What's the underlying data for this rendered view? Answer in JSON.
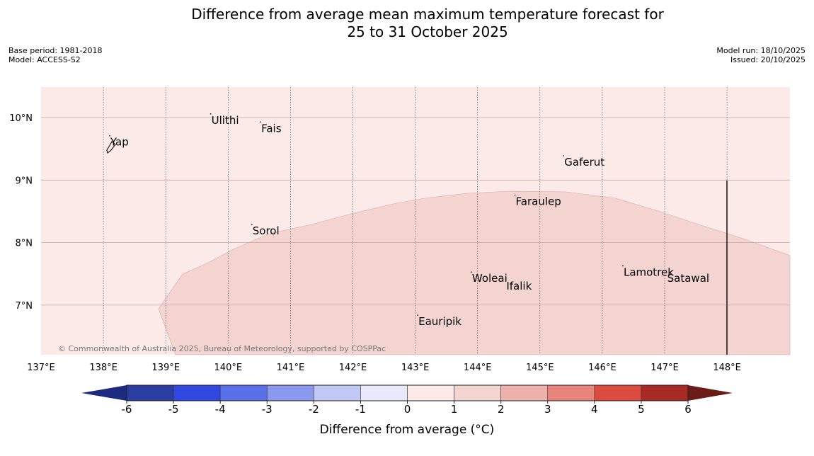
{
  "title": {
    "line1": "Difference from average mean maximum temperature forecast for",
    "line2": "25 to 31 October 2025"
  },
  "meta": {
    "base_period": "Base period: 1981-2018",
    "model": "Model: ACCESS-S2",
    "model_run": "Model run: 18/10/2025",
    "issued": "Issued: 20/10/2025"
  },
  "map": {
    "lon_range": [
      137,
      149
    ],
    "lat_range": [
      6.2,
      10.5
    ],
    "lon_ticks": [
      "137°E",
      "138°E",
      "139°E",
      "140°E",
      "141°E",
      "142°E",
      "143°E",
      "144°E",
      "145°E",
      "146°E",
      "147°E",
      "148°E"
    ],
    "lat_ticks": [
      "10°N",
      "9°N",
      "8°N",
      "7°N"
    ],
    "background_band": "0 to 1",
    "anomaly_band": "1 to 2",
    "colors": {
      "band_0_1": "#fbeae8",
      "band_1_2": "#f4d4d1",
      "grid": "#c9a9a7",
      "land": "#1a1a1a"
    },
    "islands": [
      {
        "name": "Yap",
        "lon": 138.1,
        "lat": 9.55
      },
      {
        "name": "Ulithi",
        "lon": 139.72,
        "lat": 9.9
      },
      {
        "name": "Fais",
        "lon": 140.52,
        "lat": 9.77
      },
      {
        "name": "Gaferut",
        "lon": 145.38,
        "lat": 9.23
      },
      {
        "name": "Faraulep",
        "lon": 144.6,
        "lat": 8.6
      },
      {
        "name": "Sorol",
        "lon": 140.38,
        "lat": 8.13
      },
      {
        "name": "Woleai",
        "lon": 143.9,
        "lat": 7.37
      },
      {
        "name": "Ifalik",
        "lon": 144.45,
        "lat": 7.25
      },
      {
        "name": "Lamotrek",
        "lon": 146.33,
        "lat": 7.47
      },
      {
        "name": "Satawal",
        "lon": 147.03,
        "lat": 7.37
      },
      {
        "name": "Eauripik",
        "lon": 143.04,
        "lat": 6.68
      }
    ],
    "copyright": "© Commonwealth of Australia 2025, Bureau of Meteorology, supported by COSPPac"
  },
  "colorbar": {
    "ticks": [
      "-6",
      "-5",
      "-4",
      "-3",
      "-2",
      "-1",
      "0",
      "1",
      "2",
      "3",
      "4",
      "5",
      "6"
    ],
    "colors": [
      "#2a3da0",
      "#3048e0",
      "#5a70e8",
      "#8a98ee",
      "#c2c8f6",
      "#e8eafb",
      "#fceae9",
      "#f4d4d1",
      "#eeb0ab",
      "#e8847c",
      "#dc4b40",
      "#a82a24"
    ],
    "under_color": "#1c2a80",
    "over_color": "#6c1c18",
    "label": "Difference from average (°C)"
  }
}
